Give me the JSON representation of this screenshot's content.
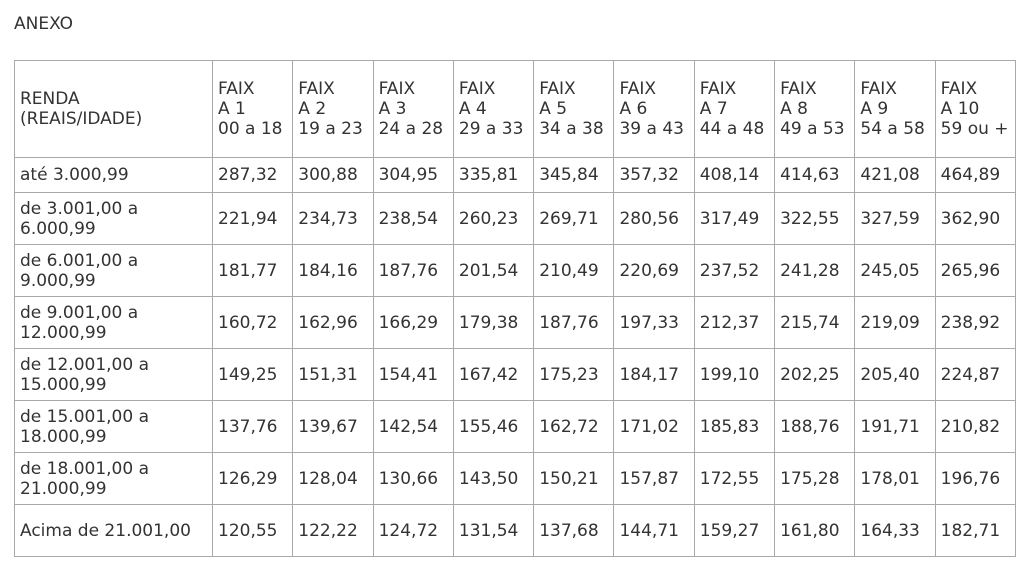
{
  "title": "ANEXO",
  "table": {
    "corner": "RENDA (REAIS/IDADE)",
    "columns": [
      {
        "name": "FAIXA 1",
        "range": "00 a 18"
      },
      {
        "name": "FAIXA 2",
        "range": "19 a 23"
      },
      {
        "name": "FAIXA 3",
        "range": "24 a 28"
      },
      {
        "name": "FAIXA 4",
        "range": "29 a 33"
      },
      {
        "name": "FAIXA 5",
        "range": "34 a 38"
      },
      {
        "name": "FAIXA 6",
        "range": "39 a 43"
      },
      {
        "name": "FAIXA 7",
        "range": "44 a 48"
      },
      {
        "name": "FAIXA 8",
        "range": "49 a 53"
      },
      {
        "name": "FAIXA 9",
        "range": "54 a 58"
      },
      {
        "name": "FAIXA 10",
        "range": "59 ou +"
      }
    ],
    "rows": [
      {
        "label": "até 3.000,99",
        "values": [
          "287,32",
          "300,88",
          "304,95",
          "335,81",
          "345,84",
          "357,32",
          "408,14",
          "414,63",
          "421,08",
          "464,89"
        ]
      },
      {
        "label": "de 3.001,00 a 6.000,99",
        "values": [
          "221,94",
          "234,73",
          "238,54",
          "260,23",
          "269,71",
          "280,56",
          "317,49",
          "322,55",
          "327,59",
          "362,90"
        ]
      },
      {
        "label": "de 6.001,00 a 9.000,99",
        "values": [
          "181,77",
          "184,16",
          "187,76",
          "201,54",
          "210,49",
          "220,69",
          "237,52",
          "241,28",
          "245,05",
          "265,96"
        ]
      },
      {
        "label": "de 9.001,00 a 12.000,99",
        "values": [
          "160,72",
          "162,96",
          "166,29",
          "179,38",
          "187,76",
          "197,33",
          "212,37",
          "215,74",
          "219,09",
          "238,92"
        ]
      },
      {
        "label": "de 12.001,00 a 15.000,99",
        "values": [
          "149,25",
          "151,31",
          "154,41",
          "167,42",
          "175,23",
          "184,17",
          "199,10",
          "202,25",
          "205,40",
          "224,87"
        ]
      },
      {
        "label": "de 15.001,00 a 18.000,99",
        "values": [
          "137,76",
          "139,67",
          "142,54",
          "155,46",
          "162,72",
          "171,02",
          "185,83",
          "188,76",
          "191,71",
          "210,82"
        ]
      },
      {
        "label": "de 18.001,00 a 21.000,99",
        "values": [
          "126,29",
          "128,04",
          "130,66",
          "143,50",
          "150,21",
          "157,87",
          "172,55",
          "175,28",
          "178,01",
          "196,76"
        ]
      },
      {
        "label": "Acima de 21.001,00",
        "values": [
          "120,55",
          "122,22",
          "124,72",
          "131,54",
          "137,68",
          "144,71",
          "159,27",
          "161,80",
          "164,33",
          "182,71"
        ]
      }
    ]
  }
}
